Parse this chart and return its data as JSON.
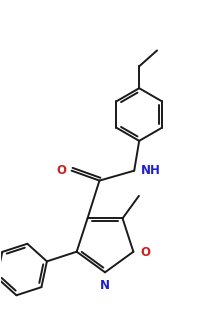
{
  "bg_color": "#ffffff",
  "line_color": "#1a1a1a",
  "N_color": "#2020cc",
  "O_color": "#cc2020",
  "lw": 1.4,
  "font_size": 8.5,
  "figsize": [
    2.2,
    3.25
  ],
  "dpi": 100,
  "xlim": [
    0,
    2.2
  ],
  "ylim": [
    0,
    3.25
  ]
}
